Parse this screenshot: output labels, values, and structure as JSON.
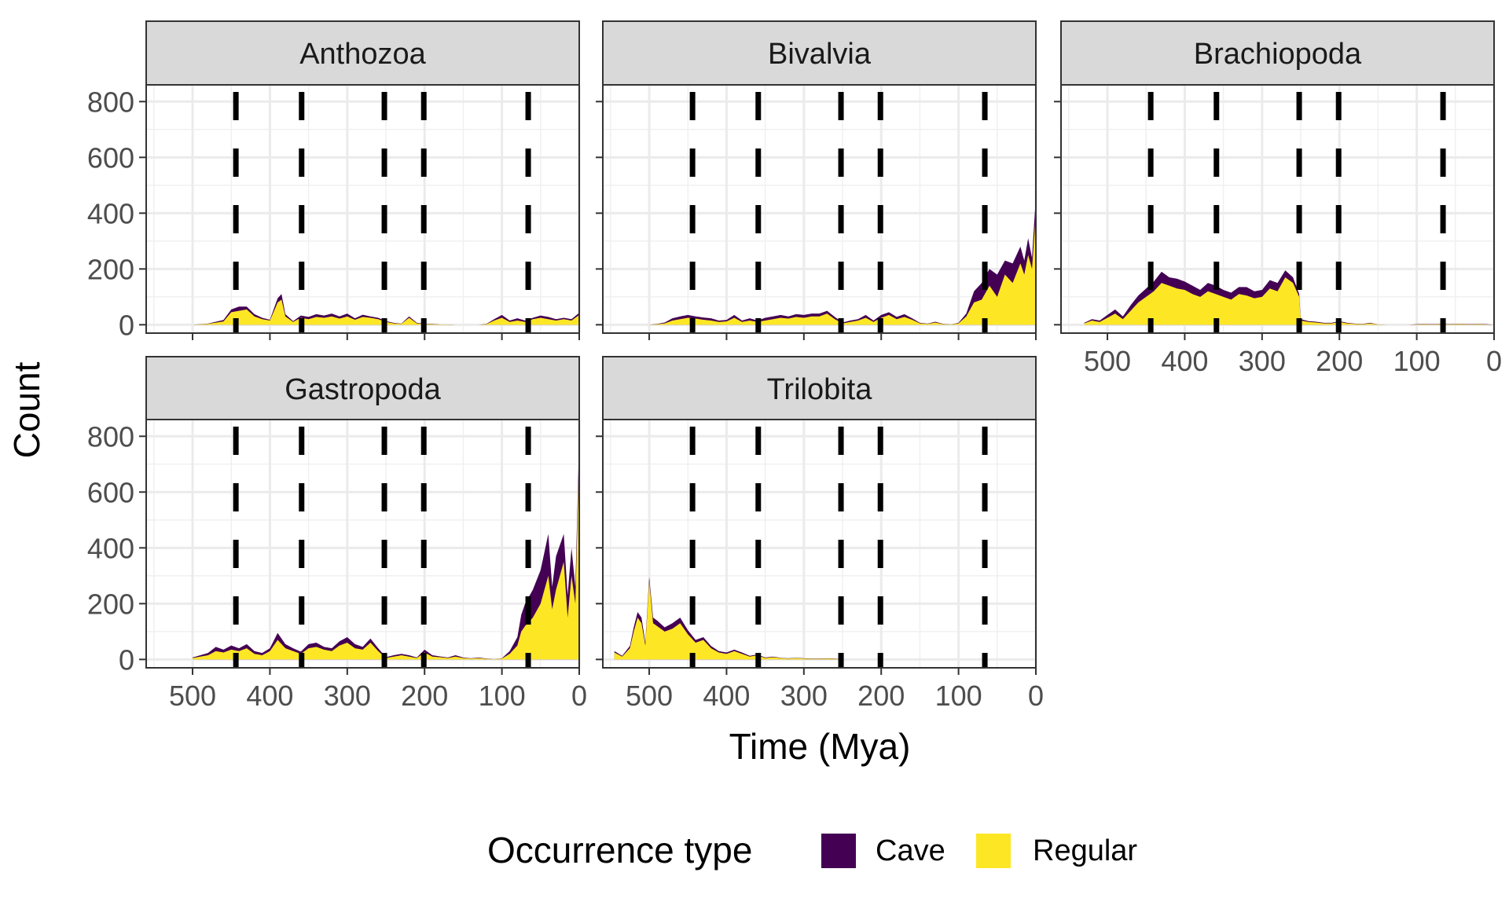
{
  "chart_data": {
    "type": "area",
    "stacked": true,
    "layout": "faceted 3x2 grid",
    "xlabel": "Time (Mya)",
    "ylabel": "Count",
    "x_reversed": true,
    "xlim": [
      560,
      0
    ],
    "ylim": [
      -30,
      860
    ],
    "x_ticks": [
      500,
      400,
      300,
      200,
      100,
      0
    ],
    "y_ticks": [
      0,
      200,
      400,
      600,
      800
    ],
    "grid": true,
    "legend": {
      "title": "Occurrence type",
      "placement": "bottom",
      "entries": [
        {
          "label": "Cave",
          "color": "#440154"
        },
        {
          "label": "Regular",
          "color": "#FDE725"
        }
      ]
    },
    "reference_lines_mya": [
      444,
      359,
      252,
      201,
      66
    ],
    "reference_line_style": "black dashed",
    "facets": [
      {
        "name": "Anthozoa",
        "x": [
          500,
          480,
          460,
          450,
          440,
          430,
          420,
          410,
          400,
          390,
          385,
          380,
          370,
          360,
          350,
          340,
          330,
          320,
          310,
          300,
          290,
          280,
          270,
          260,
          250,
          240,
          230,
          220,
          210,
          200,
          190,
          180,
          170,
          160,
          150,
          140,
          130,
          120,
          110,
          100,
          90,
          80,
          70,
          60,
          50,
          40,
          30,
          20,
          10,
          0
        ],
        "series": [
          {
            "name": "Regular",
            "values": [
              0,
              3,
              12,
              45,
              50,
              55,
              30,
              20,
              15,
              80,
              90,
              30,
              10,
              25,
              20,
              28,
              25,
              30,
              22,
              30,
              18,
              28,
              25,
              20,
              10,
              5,
              3,
              25,
              5,
              3,
              2,
              1,
              1,
              0,
              0,
              0,
              0,
              2,
              15,
              25,
              10,
              15,
              10,
              20,
              25,
              20,
              15,
              20,
              15,
              35
            ]
          },
          {
            "name": "Cave",
            "values": [
              0,
              1,
              5,
              10,
              15,
              10,
              8,
              5,
              3,
              15,
              20,
              8,
              3,
              8,
              8,
              10,
              8,
              10,
              8,
              10,
              5,
              8,
              5,
              5,
              3,
              2,
              1,
              5,
              2,
              1,
              1,
              0,
              0,
              0,
              0,
              0,
              0,
              1,
              5,
              10,
              5,
              8,
              5,
              5,
              8,
              8,
              5,
              5,
              5,
              8
            ]
          }
        ]
      },
      {
        "name": "Bivalvia",
        "x": [
          500,
          490,
          480,
          470,
          460,
          450,
          440,
          430,
          420,
          410,
          400,
          390,
          380,
          370,
          360,
          350,
          340,
          330,
          320,
          310,
          300,
          290,
          280,
          270,
          260,
          250,
          240,
          230,
          220,
          210,
          200,
          190,
          180,
          170,
          160,
          150,
          140,
          130,
          120,
          110,
          100,
          90,
          80,
          70,
          60,
          50,
          40,
          30,
          20,
          15,
          10,
          5,
          0
        ],
        "series": [
          {
            "name": "Regular",
            "values": [
              0,
              2,
              5,
              15,
              20,
              25,
              22,
              18,
              15,
              10,
              12,
              25,
              10,
              15,
              10,
              15,
              20,
              25,
              22,
              28,
              25,
              30,
              30,
              40,
              20,
              5,
              10,
              15,
              25,
              10,
              25,
              35,
              20,
              28,
              18,
              5,
              3,
              8,
              2,
              1,
              5,
              30,
              80,
              90,
              140,
              100,
              180,
              150,
              220,
              180,
              250,
              200,
              400
            ]
          },
          {
            "name": "Cave",
            "values": [
              0,
              1,
              3,
              8,
              10,
              10,
              8,
              8,
              8,
              5,
              5,
              10,
              5,
              8,
              5,
              10,
              10,
              10,
              8,
              10,
              10,
              10,
              10,
              10,
              8,
              3,
              5,
              5,
              10,
              5,
              10,
              10,
              8,
              10,
              5,
              2,
              1,
              3,
              1,
              0,
              2,
              10,
              40,
              60,
              60,
              80,
              50,
              70,
              60,
              50,
              60,
              40,
              60
            ]
          }
        ]
      },
      {
        "name": "Brachiopoda",
        "x": [
          530,
          520,
          510,
          500,
          490,
          480,
          470,
          460,
          450,
          440,
          430,
          420,
          410,
          400,
          390,
          380,
          370,
          360,
          350,
          340,
          330,
          320,
          310,
          300,
          290,
          280,
          270,
          260,
          252,
          250,
          240,
          230,
          220,
          210,
          200,
          190,
          180,
          170,
          160,
          150,
          140,
          130,
          120,
          110,
          100,
          90,
          80,
          70,
          60,
          50,
          40,
          30,
          20,
          10,
          0
        ],
        "series": [
          {
            "name": "Regular",
            "values": [
              5,
              15,
              10,
              25,
              40,
              20,
              50,
              80,
              100,
              120,
              150,
              140,
              130,
              125,
              110,
              100,
              120,
              110,
              100,
              90,
              110,
              105,
              95,
              100,
              130,
              120,
              170,
              150,
              100,
              15,
              10,
              8,
              5,
              5,
              10,
              5,
              3,
              2,
              5,
              1,
              0,
              0,
              0,
              0,
              1,
              2,
              1,
              2,
              1,
              2,
              2,
              1,
              2,
              1,
              0
            ]
          },
          {
            "name": "Cave",
            "values": [
              2,
              5,
              5,
              10,
              15,
              10,
              20,
              25,
              30,
              35,
              40,
              30,
              35,
              30,
              30,
              25,
              30,
              30,
              25,
              25,
              25,
              30,
              25,
              25,
              30,
              30,
              25,
              20,
              10,
              5,
              3,
              3,
              2,
              2,
              3,
              2,
              1,
              1,
              2,
              0,
              0,
              0,
              0,
              0,
              1,
              1,
              1,
              1,
              1,
              1,
              1,
              1,
              1,
              1,
              0
            ]
          }
        ]
      },
      {
        "name": "Gastropoda",
        "x": [
          500,
          490,
          480,
          470,
          460,
          450,
          440,
          430,
          420,
          410,
          400,
          390,
          380,
          370,
          360,
          350,
          340,
          330,
          320,
          310,
          300,
          290,
          280,
          270,
          260,
          250,
          240,
          230,
          220,
          210,
          200,
          190,
          180,
          170,
          160,
          150,
          140,
          130,
          120,
          110,
          100,
          90,
          80,
          75,
          70,
          60,
          50,
          40,
          35,
          30,
          20,
          15,
          10,
          5,
          0
        ],
        "series": [
          {
            "name": "Regular",
            "values": [
              5,
              10,
              15,
              30,
              25,
              35,
              30,
              40,
              20,
              15,
              30,
              70,
              40,
              30,
              20,
              40,
              45,
              35,
              30,
              50,
              60,
              40,
              35,
              60,
              30,
              5,
              10,
              15,
              10,
              5,
              25,
              10,
              8,
              5,
              10,
              5,
              3,
              5,
              2,
              1,
              3,
              20,
              50,
              100,
              120,
              150,
              200,
              300,
              180,
              250,
              350,
              150,
              300,
              200,
              750
            ]
          },
          {
            "name": "Cave",
            "values": [
              2,
              5,
              8,
              15,
              10,
              15,
              10,
              15,
              10,
              8,
              10,
              25,
              15,
              10,
              8,
              15,
              15,
              10,
              10,
              15,
              20,
              15,
              10,
              15,
              10,
              3,
              5,
              5,
              5,
              2,
              10,
              5,
              3,
              2,
              5,
              2,
              1,
              2,
              1,
              0,
              1,
              10,
              30,
              60,
              80,
              100,
              120,
              150,
              80,
              120,
              100,
              80,
              100,
              60,
              50
            ]
          }
        ]
      },
      {
        "name": "Trilobita",
        "x": [
          545,
          535,
          525,
          520,
          515,
          510,
          505,
          500,
          495,
          490,
          480,
          470,
          460,
          450,
          440,
          430,
          420,
          410,
          400,
          390,
          380,
          370,
          360,
          350,
          340,
          330,
          320,
          310,
          300,
          290,
          280,
          270,
          260,
          252
        ],
        "series": [
          {
            "name": "Regular",
            "values": [
              25,
              10,
              40,
              100,
              150,
              130,
              50,
              280,
              130,
              120,
              100,
              110,
              130,
              90,
              60,
              70,
              40,
              25,
              20,
              30,
              20,
              10,
              15,
              5,
              8,
              5,
              3,
              5,
              3,
              2,
              2,
              3,
              2,
              0
            ]
          },
          {
            "name": "Cave",
            "values": [
              5,
              3,
              8,
              15,
              20,
              20,
              10,
              15,
              20,
              20,
              15,
              20,
              20,
              15,
              10,
              10,
              8,
              5,
              5,
              5,
              5,
              3,
              3,
              2,
              2,
              1,
              1,
              1,
              1,
              1,
              1,
              1,
              1,
              0
            ]
          }
        ]
      }
    ]
  }
}
